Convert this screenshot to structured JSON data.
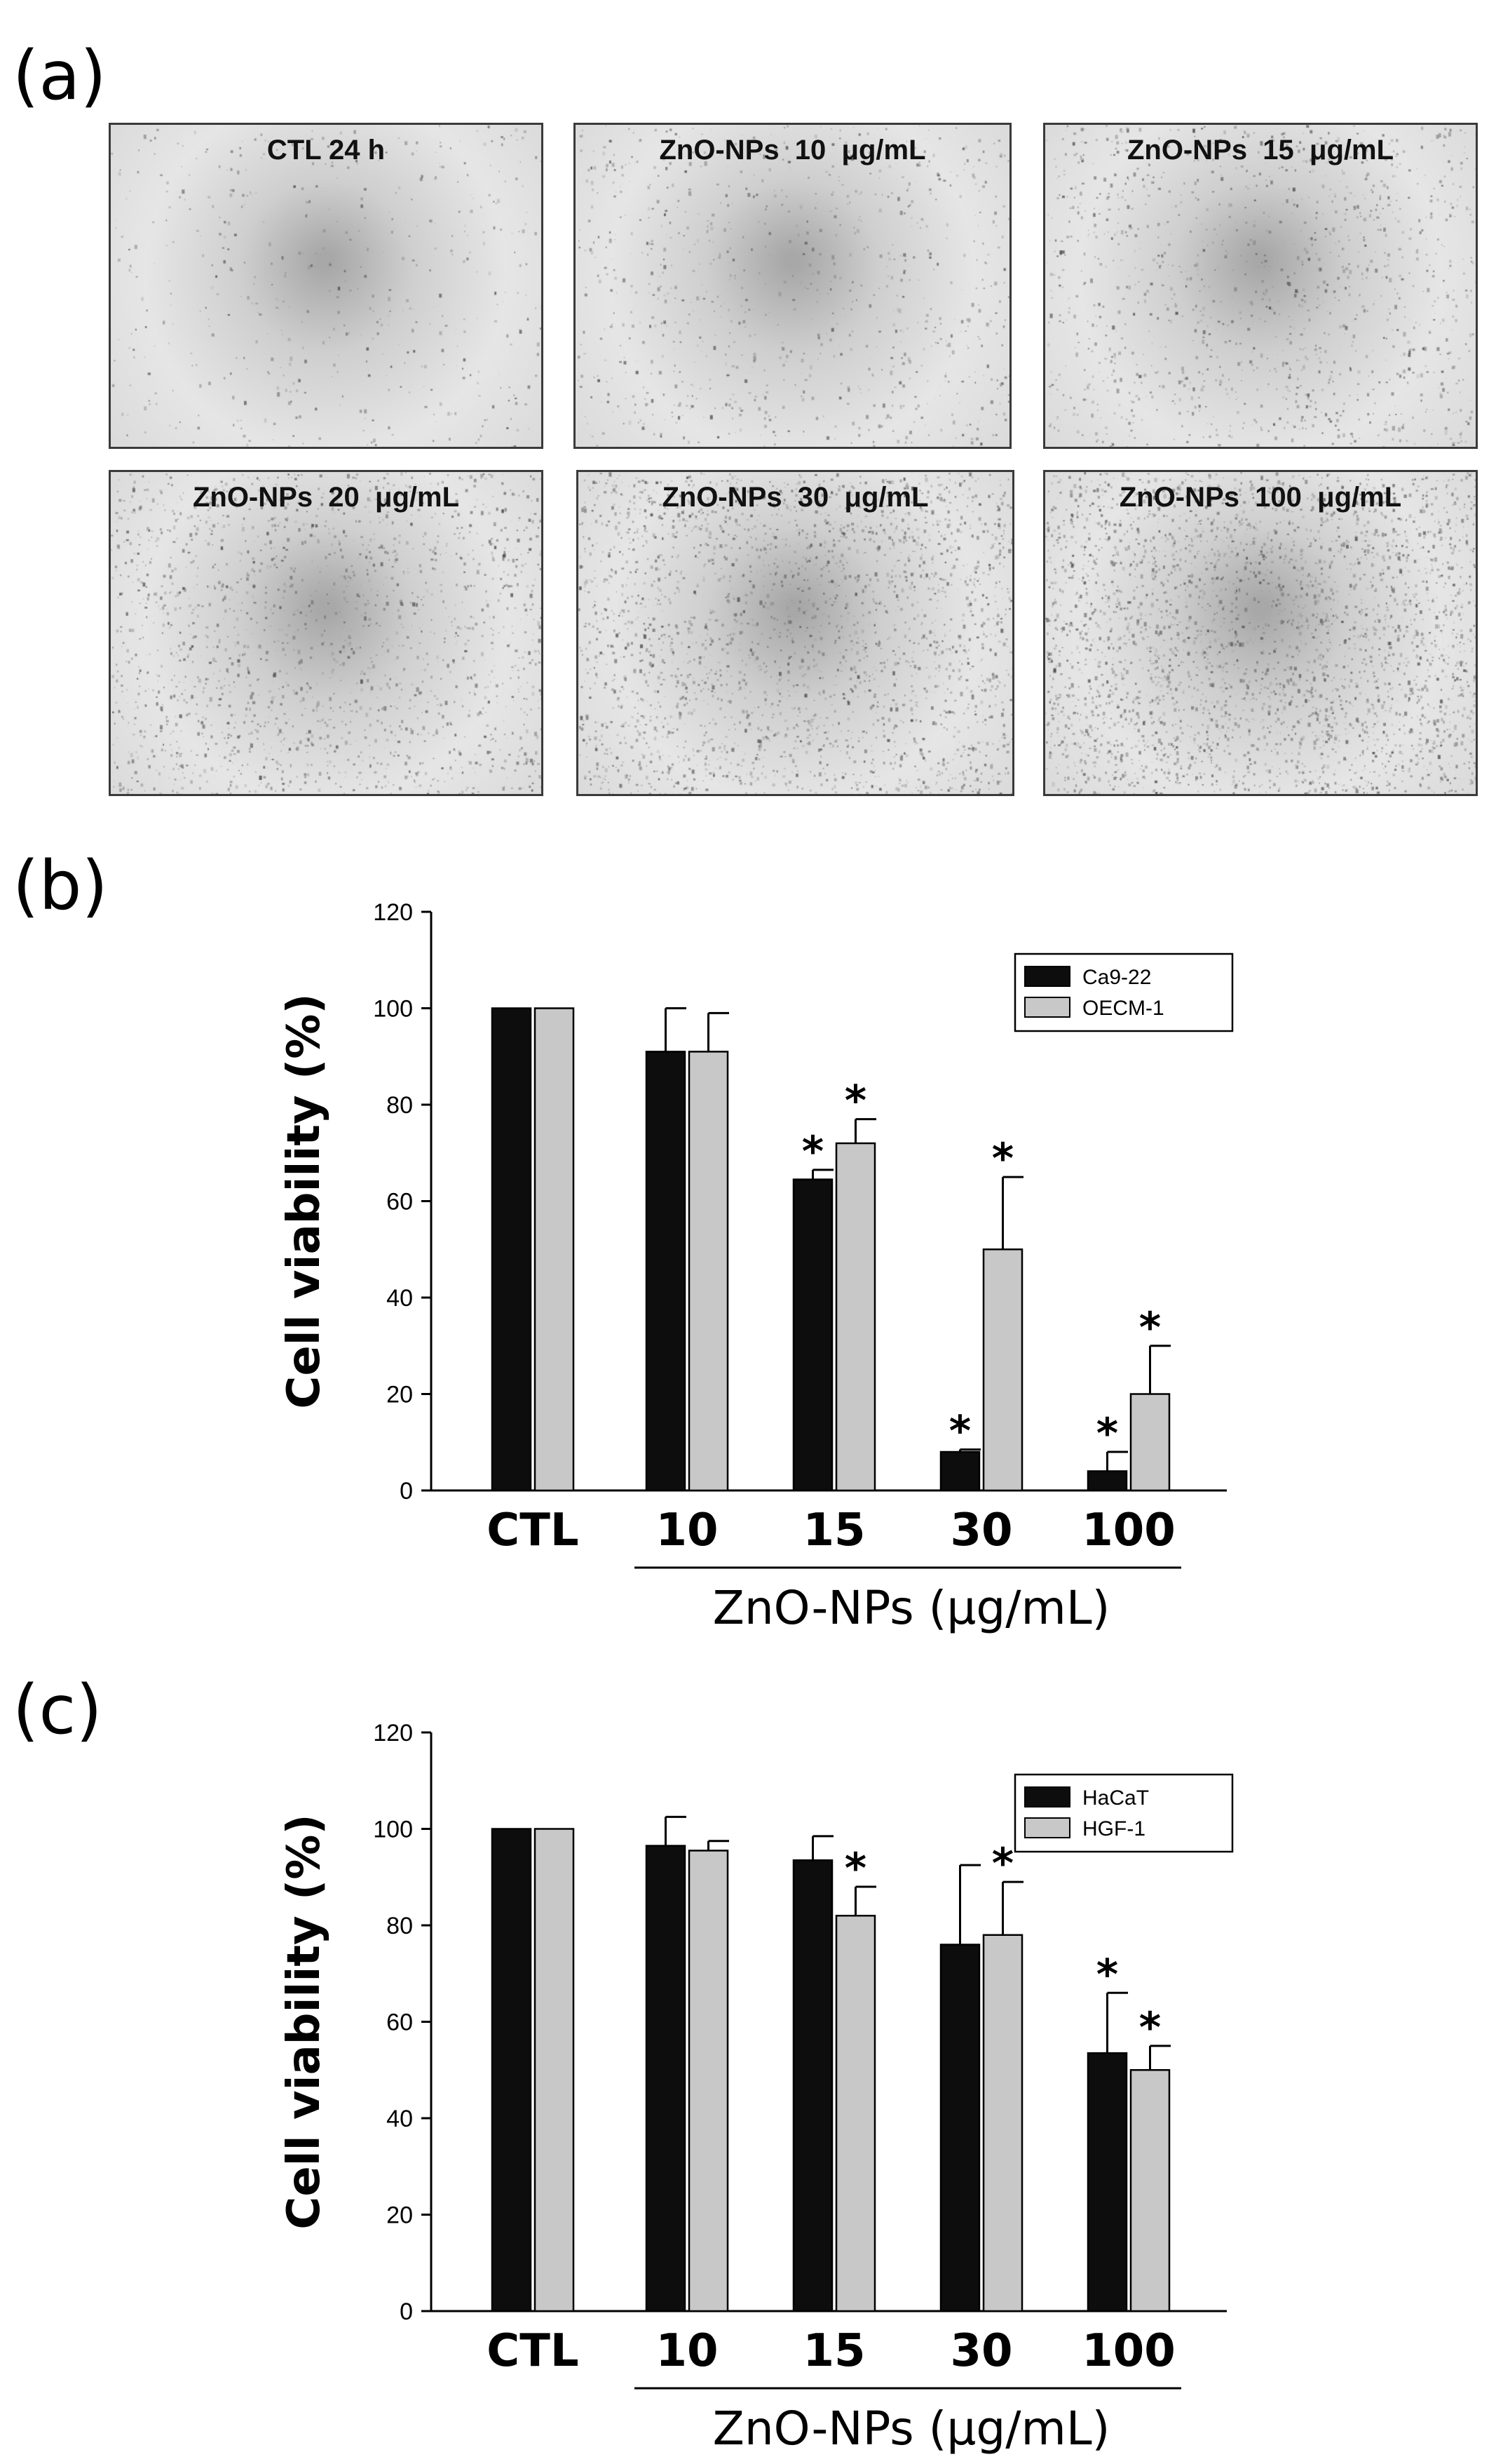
{
  "panel_a": {
    "letter": "(a)",
    "images": [
      {
        "label": "CTL 24 h",
        "density": 0.02
      },
      {
        "label": "ZnO-NPs  10  μg/mL",
        "density": 0.1
      },
      {
        "label": "ZnO-NPs  15  μg/mL",
        "density": 0.18
      },
      {
        "label": "ZnO-NPs  20  μg/mL",
        "density": 0.3
      },
      {
        "label": "ZnO-NPs  30  μg/mL",
        "density": 0.45
      },
      {
        "label": "ZnO-NPs  100  μg/mL",
        "density": 0.6
      }
    ]
  },
  "panel_b": {
    "letter": "(b)"
  },
  "panel_c": {
    "letter": "(c)"
  },
  "colors": {
    "series_dark": "#0d0d0d",
    "series_light": "#c8c8c8",
    "axis": "#000000"
  },
  "chart_data": [
    {
      "type": "bar",
      "categories": [
        "CTL",
        "10",
        "15",
        "30",
        "100"
      ],
      "xlabel": "ZnO-NPs (μg/mL)",
      "ylabel": "Cell viability (%)",
      "ylim": [
        0,
        120
      ],
      "yticks": [
        0,
        20,
        40,
        60,
        80,
        100,
        120
      ],
      "legend_position": "top-right",
      "series": [
        {
          "name": "Ca9-22",
          "color": "#0d0d0d",
          "values": [
            100,
            91,
            64.5,
            8,
            4
          ],
          "errors": [
            0,
            9,
            2,
            0.5,
            4
          ],
          "significant": [
            false,
            false,
            true,
            true,
            true
          ]
        },
        {
          "name": "OECM-1",
          "color": "#c8c8c8",
          "values": [
            100,
            91,
            72,
            50,
            20
          ],
          "errors": [
            0,
            8,
            5,
            15,
            10
          ],
          "significant": [
            false,
            false,
            true,
            true,
            true
          ]
        }
      ],
      "significance_mark": "*"
    },
    {
      "type": "bar",
      "categories": [
        "CTL",
        "10",
        "15",
        "30",
        "100"
      ],
      "xlabel": "ZnO-NPs (μg/mL)",
      "ylabel": "Cell viability (%)",
      "ylim": [
        0,
        120
      ],
      "yticks": [
        0,
        20,
        40,
        60,
        80,
        100,
        120
      ],
      "legend_position": "top-right",
      "series": [
        {
          "name": "HaCaT",
          "color": "#0d0d0d",
          "values": [
            100,
            96.5,
            93.5,
            76,
            53.5
          ],
          "errors": [
            0,
            6,
            5,
            16.5,
            12.5
          ],
          "significant": [
            false,
            false,
            false,
            false,
            true
          ]
        },
        {
          "name": "HGF-1",
          "color": "#c8c8c8",
          "values": [
            100,
            95.5,
            82,
            78,
            50
          ],
          "errors": [
            0,
            2,
            6,
            11,
            5
          ],
          "significant": [
            false,
            false,
            true,
            true,
            true
          ]
        }
      ],
      "significance_mark": "*"
    }
  ]
}
